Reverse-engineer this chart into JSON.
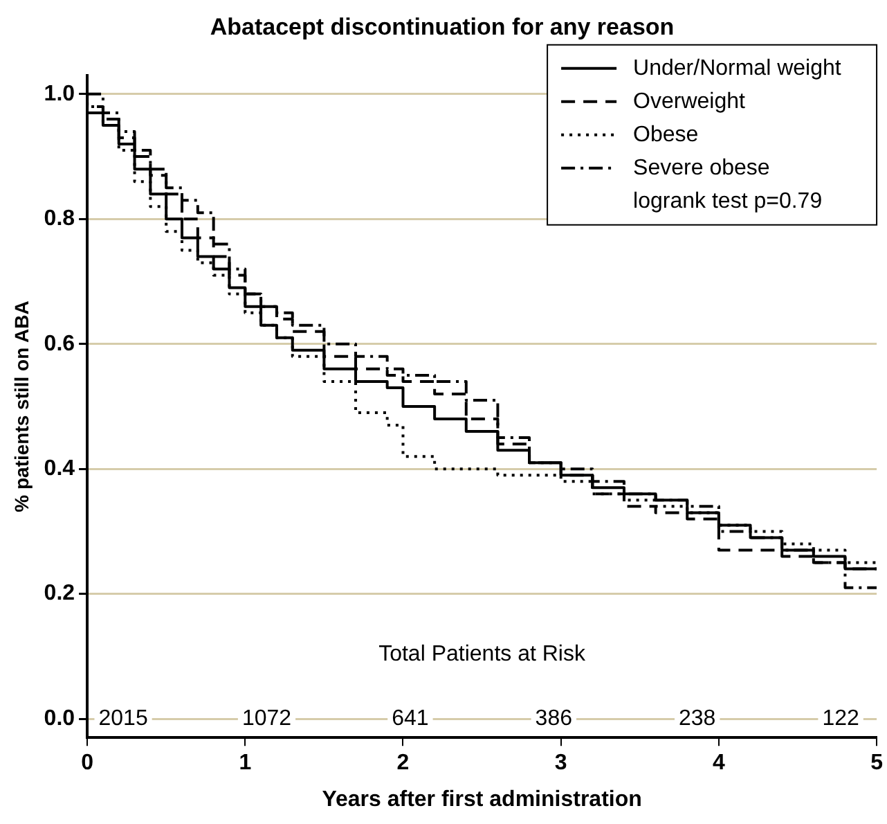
{
  "chart_data": {
    "type": "step",
    "title": "Abatacept discontinuation for any reason",
    "xlabel": "Years after first administration",
    "ylabel": "% patients still on ABA",
    "xlim": [
      0,
      5
    ],
    "xticks": [
      0,
      1,
      2,
      3,
      4,
      5
    ],
    "ylim": [
      -0.03,
      1.03
    ],
    "yticks": [
      {
        "value": 0,
        "label": "0.0"
      },
      {
        "value": 0.2,
        "label": "0.2"
      },
      {
        "value": 0.4,
        "label": "0.4"
      },
      {
        "value": 0.6,
        "label": "0.6"
      },
      {
        "value": 0.8,
        "label": "0.8"
      },
      {
        "value": 1,
        "label": "1.0"
      }
    ],
    "grid": "y",
    "legend": "top right",
    "marker": "none",
    "x": [
      0,
      0.1,
      0.2,
      0.3,
      0.4,
      0.5,
      0.6,
      0.7,
      0.8,
      0.9,
      1.0,
      1.1,
      1.2,
      1.3,
      1.5,
      1.7,
      1.9,
      2.0,
      2.2,
      2.4,
      2.6,
      2.8,
      3.0,
      3.2,
      3.4,
      3.6,
      3.8,
      4.0,
      4.2,
      4.4,
      4.6,
      4.8,
      5.0
    ],
    "series": [
      {
        "name": "Under/Normal weight",
        "color": "#000000",
        "line_style": "solid",
        "values": [
          1.0,
          0.97,
          0.95,
          0.92,
          0.88,
          0.84,
          0.8,
          0.77,
          0.74,
          0.72,
          0.69,
          0.66,
          0.63,
          0.61,
          0.59,
          0.56,
          0.54,
          0.53,
          0.5,
          0.48,
          0.46,
          0.43,
          0.41,
          0.39,
          0.37,
          0.36,
          0.35,
          0.33,
          0.31,
          0.29,
          0.27,
          0.26,
          0.24
        ]
      },
      {
        "name": "Overweight",
        "color": "#000000",
        "line_style": "dashed",
        "values": [
          1.0,
          0.98,
          0.96,
          0.93,
          0.9,
          0.87,
          0.84,
          0.8,
          0.77,
          0.74,
          0.71,
          0.68,
          0.66,
          0.64,
          0.62,
          0.58,
          0.56,
          0.55,
          0.54,
          0.52,
          0.48,
          0.44,
          0.41,
          0.39,
          0.36,
          0.34,
          0.33,
          0.32,
          0.27,
          0.27,
          0.26,
          0.25,
          0.24
        ]
      },
      {
        "name": "Obese",
        "color": "#000000",
        "line_style": "dotted",
        "values": [
          1.0,
          0.98,
          0.95,
          0.91,
          0.86,
          0.82,
          0.78,
          0.75,
          0.73,
          0.71,
          0.68,
          0.65,
          0.63,
          0.61,
          0.58,
          0.54,
          0.49,
          0.47,
          0.42,
          0.4,
          0.4,
          0.39,
          0.39,
          0.38,
          0.36,
          0.35,
          0.34,
          0.33,
          0.31,
          0.3,
          0.28,
          0.27,
          0.25
        ]
      },
      {
        "name": "Severe obese",
        "color": "#000000",
        "line_style": "dashdot",
        "values": [
          1.0,
          1.0,
          0.97,
          0.94,
          0.91,
          0.88,
          0.85,
          0.83,
          0.81,
          0.76,
          0.72,
          0.68,
          0.66,
          0.65,
          0.63,
          0.6,
          0.58,
          0.56,
          0.55,
          0.54,
          0.51,
          0.45,
          0.41,
          0.4,
          0.38,
          0.36,
          0.35,
          0.34,
          0.3,
          0.29,
          0.27,
          0.25,
          0.21
        ]
      }
    ],
    "annotations": [
      "logrank test p=0.79",
      "Total Patients at Risk",
      "2015",
      "1072",
      "641",
      "386",
      "238",
      "122"
    ]
  }
}
